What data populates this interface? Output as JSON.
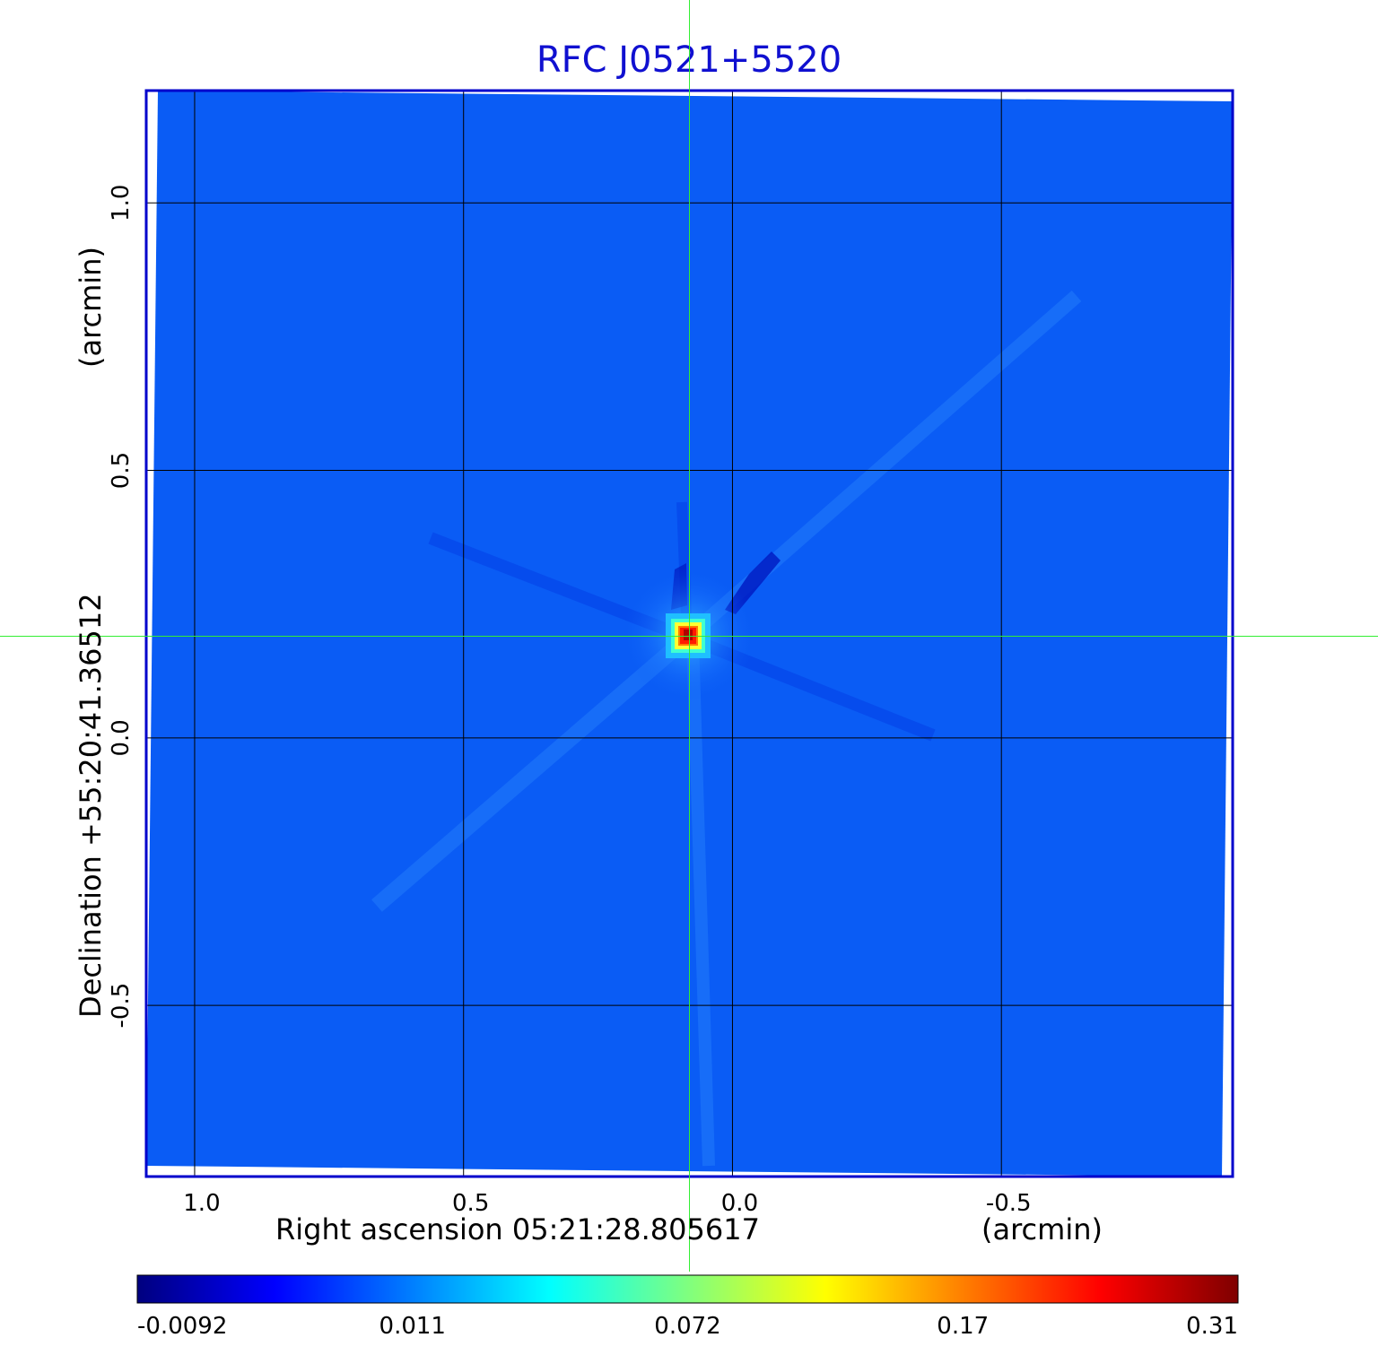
{
  "chart_data": {
    "type": "heatmap",
    "title": "RFC J0521+5520",
    "xlabel": "Right ascension  05:21:28.805617",
    "xunit": "(arcmin)",
    "ylabel": "Declination  +55:20:41.36512",
    "yunit": "(arcmin)",
    "xlim": [
      1.09,
      -0.93
    ],
    "ylim": [
      -0.82,
      1.21
    ],
    "x_ticks": [
      {
        "value": 1.0,
        "label": "1.0"
      },
      {
        "value": 0.5,
        "label": "0.5"
      },
      {
        "value": 0.0,
        "label": "0.0"
      },
      {
        "value": -0.5,
        "label": "-0.5"
      }
    ],
    "y_ticks": [
      {
        "value": 1.0,
        "label": "1.0"
      },
      {
        "value": 0.5,
        "label": "0.5"
      },
      {
        "value": 0.0,
        "label": "0.0"
      },
      {
        "value": -0.5,
        "label": "-0.5"
      }
    ],
    "grid": true,
    "crosshair": {
      "x": 0.08,
      "y": 0.19
    },
    "peak": {
      "x": 0.08,
      "y": 0.19,
      "value": 0.31
    },
    "background_value": 0.0,
    "colorbar": {
      "ticks": [
        {
          "value": -0.0092,
          "label": "-0.0092"
        },
        {
          "value": 0.011,
          "label": "0.011"
        },
        {
          "value": 0.072,
          "label": "0.072"
        },
        {
          "value": 0.17,
          "label": "0.17"
        },
        {
          "value": 0.31,
          "label": "0.31"
        }
      ],
      "colors": [
        "#00007f",
        "#0000ff",
        "#007fff",
        "#00ffff",
        "#7fff7f",
        "#ffff00",
        "#ff7f00",
        "#ff0000",
        "#7f0000"
      ]
    },
    "colors": {
      "title": "#1010d0",
      "frame": "#0000cc",
      "crosshair": "#33ee33",
      "background": "#0a5cf5"
    }
  }
}
